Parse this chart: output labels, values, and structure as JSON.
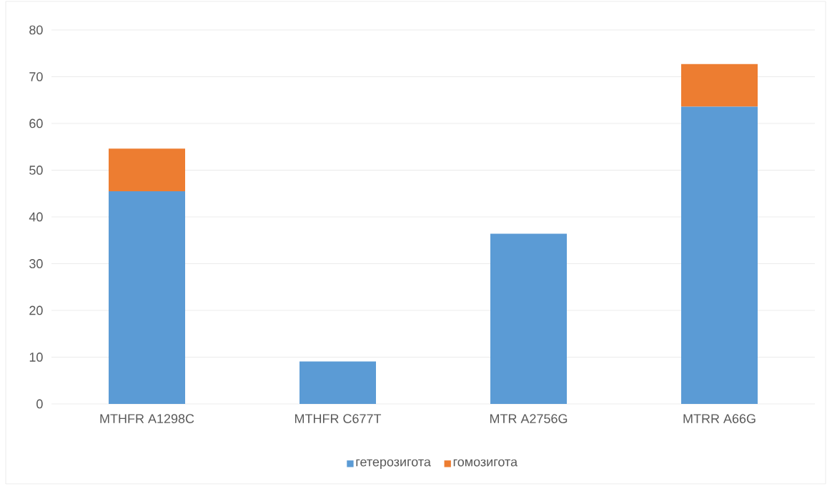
{
  "chart_data": {
    "type": "bar",
    "stacked": true,
    "categories": [
      "MTHFR A1298C",
      "MTHFR C677T",
      "MTR A2756G",
      "MTRR A66G"
    ],
    "series": [
      {
        "name": "гетерозигота",
        "color": "#5b9bd5",
        "values": [
          45.5,
          9.1,
          36.4,
          63.6
        ]
      },
      {
        "name": "гомозигота",
        "color": "#ed7d31",
        "values": [
          9.1,
          null,
          null,
          9.1
        ]
      }
    ],
    "ylim": [
      0,
      80
    ],
    "yticks": [
      0,
      10,
      20,
      30,
      40,
      50,
      60,
      70,
      80
    ],
    "grid": "y",
    "legend": "bottom"
  }
}
